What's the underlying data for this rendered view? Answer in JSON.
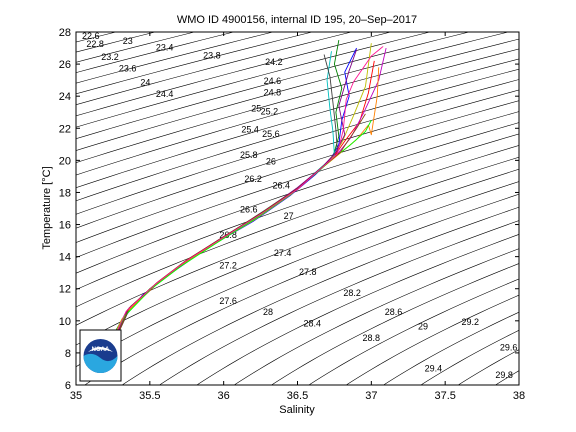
{
  "chart_data": {
    "type": "line",
    "title": "WMO ID 4900156, internal ID 195, 20–Sep–2017",
    "xlabel": "Salinity",
    "ylabel": "Temperature [°C]",
    "xlim": [
      35,
      38
    ],
    "ylim": [
      6,
      28
    ],
    "x_ticks": [
      "35",
      "35.5",
      "36",
      "36.5",
      "37",
      "37.5",
      "38"
    ],
    "y_ticks": [
      "6",
      "8",
      "10",
      "12",
      "14",
      "16",
      "18",
      "20",
      "22",
      "24",
      "26",
      "28"
    ],
    "grid": false,
    "logo_text": "NOAA",
    "density_contours": {
      "levels": [
        21.4,
        21.6,
        21.8,
        22,
        22.2,
        22.4,
        22.6,
        22.8,
        23,
        23.2,
        23.4,
        23.6,
        23.8,
        24,
        24.2,
        24.4,
        24.6,
        24.8,
        25,
        25.2,
        25.4,
        25.6,
        25.8,
        26,
        26.2,
        26.4,
        26.6,
        26.8,
        27,
        27.2,
        27.4,
        27.6,
        27.8,
        28,
        28.2,
        28.4,
        28.6,
        28.8,
        29,
        29.2,
        29.4,
        29.6,
        29.8,
        30
      ],
      "labels": [
        {
          "text": "22.6",
          "s": 35.1,
          "t": 27.7
        },
        {
          "text": "22.8",
          "s": 35.13,
          "t": 27.2
        },
        {
          "text": "23",
          "s": 35.35,
          "t": 27.4
        },
        {
          "text": "23.2",
          "s": 35.23,
          "t": 26.4
        },
        {
          "text": "23.4",
          "s": 35.6,
          "t": 27.0
        },
        {
          "text": "23.6",
          "s": 35.35,
          "t": 25.7
        },
        {
          "text": "23.8",
          "s": 35.92,
          "t": 26.5
        },
        {
          "text": "24",
          "s": 35.47,
          "t": 24.8
        },
        {
          "text": "24.2",
          "s": 36.34,
          "t": 26.1
        },
        {
          "text": "24.4",
          "s": 35.6,
          "t": 24.1
        },
        {
          "text": "24.6",
          "s": 36.33,
          "t": 24.9
        },
        {
          "text": "24.8",
          "s": 36.33,
          "t": 24.2
        },
        {
          "text": "25",
          "s": 36.22,
          "t": 23.2
        },
        {
          "text": "25.2",
          "s": 36.31,
          "t": 23.0
        },
        {
          "text": "25.4",
          "s": 36.18,
          "t": 21.9
        },
        {
          "text": "25.6",
          "s": 36.32,
          "t": 21.6
        },
        {
          "text": "25.8",
          "s": 36.17,
          "t": 20.3
        },
        {
          "text": "26",
          "s": 36.32,
          "t": 19.9
        },
        {
          "text": "26.2",
          "s": 36.2,
          "t": 18.8
        },
        {
          "text": "26.4",
          "s": 36.39,
          "t": 18.4
        },
        {
          "text": "26.6",
          "s": 36.17,
          "t": 16.9
        },
        {
          "text": "27",
          "s": 36.44,
          "t": 16.5
        },
        {
          "text": "26.8",
          "s": 36.03,
          "t": 15.3
        },
        {
          "text": "27.4",
          "s": 36.4,
          "t": 14.2
        },
        {
          "text": "27.2",
          "s": 36.03,
          "t": 13.4
        },
        {
          "text": "27.8",
          "s": 36.57,
          "t": 13.0
        },
        {
          "text": "28.2",
          "s": 36.87,
          "t": 11.7
        },
        {
          "text": "27.6",
          "s": 36.03,
          "t": 11.2
        },
        {
          "text": "28",
          "s": 36.3,
          "t": 10.5
        },
        {
          "text": "28.6",
          "s": 37.15,
          "t": 10.5
        },
        {
          "text": "28.4",
          "s": 36.6,
          "t": 9.8
        },
        {
          "text": "29.2",
          "s": 37.67,
          "t": 9.9
        },
        {
          "text": "29",
          "s": 37.35,
          "t": 9.6
        },
        {
          "text": "28.8",
          "s": 37.0,
          "t": 8.9
        },
        {
          "text": "29.6",
          "s": 37.93,
          "t": 8.3
        },
        {
          "text": "29.4",
          "s": 37.42,
          "t": 7.0
        },
        {
          "text": "29.8",
          "s": 37.9,
          "t": 6.6
        }
      ]
    },
    "series": [
      {
        "color": "#0000ff",
        "points": [
          [
            35.25,
            8.8
          ],
          [
            35.3,
            9.9
          ],
          [
            35.45,
            11.6
          ],
          [
            35.65,
            13.0
          ],
          [
            35.9,
            14.6
          ],
          [
            36.2,
            16.2
          ],
          [
            36.45,
            17.8
          ],
          [
            36.62,
            19.1
          ],
          [
            36.72,
            20.0
          ],
          [
            36.78,
            21.0
          ],
          [
            36.8,
            22.5
          ],
          [
            36.85,
            24.0
          ],
          [
            36.82,
            25.5
          ],
          [
            36.9,
            27.0
          ]
        ]
      },
      {
        "color": "#008000",
        "points": [
          [
            35.22,
            8.6
          ],
          [
            35.32,
            10.2
          ],
          [
            35.5,
            12.0
          ],
          [
            35.7,
            13.4
          ],
          [
            35.95,
            14.9
          ],
          [
            36.22,
            16.4
          ],
          [
            36.47,
            18.0
          ],
          [
            36.63,
            19.3
          ],
          [
            36.74,
            20.2
          ],
          [
            36.78,
            21.5
          ],
          [
            36.76,
            23.0
          ],
          [
            36.8,
            24.5
          ],
          [
            36.75,
            26.0
          ],
          [
            36.78,
            27.5
          ]
        ]
      },
      {
        "color": "#ff0000",
        "points": [
          [
            35.27,
            9.0
          ],
          [
            35.35,
            10.6
          ],
          [
            35.55,
            12.3
          ],
          [
            35.75,
            13.7
          ],
          [
            36.0,
            15.2
          ],
          [
            36.25,
            16.6
          ],
          [
            36.5,
            18.2
          ],
          [
            36.66,
            19.5
          ],
          [
            36.76,
            20.4
          ],
          [
            36.82,
            21.2
          ],
          [
            36.92,
            22.4
          ],
          [
            36.98,
            24.2
          ],
          [
            37.02,
            26.2
          ]
        ]
      },
      {
        "color": "#00bfbf",
        "points": [
          [
            35.24,
            8.7
          ],
          [
            35.33,
            10.4
          ],
          [
            35.52,
            12.1
          ],
          [
            35.72,
            13.5
          ],
          [
            35.97,
            15.0
          ],
          [
            36.23,
            16.5
          ],
          [
            36.48,
            18.1
          ],
          [
            36.64,
            19.4
          ],
          [
            36.75,
            20.3
          ],
          [
            36.74,
            21.8
          ],
          [
            36.72,
            23.2
          ],
          [
            36.7,
            25.0
          ],
          [
            36.73,
            26.8
          ]
        ]
      },
      {
        "color": "#bf00bf",
        "points": [
          [
            35.26,
            8.9
          ],
          [
            35.36,
            10.8
          ],
          [
            35.56,
            12.4
          ],
          [
            35.76,
            13.8
          ],
          [
            36.02,
            15.3
          ],
          [
            36.27,
            16.8
          ],
          [
            36.5,
            18.3
          ],
          [
            36.67,
            19.6
          ],
          [
            36.78,
            20.5
          ],
          [
            36.86,
            21.4
          ],
          [
            36.95,
            23.0
          ],
          [
            37.05,
            25.0
          ],
          [
            37.1,
            27.0
          ]
        ]
      },
      {
        "color": "#bfbf00",
        "points": [
          [
            35.23,
            8.5
          ],
          [
            35.31,
            10.1
          ],
          [
            35.49,
            11.9
          ],
          [
            35.69,
            13.3
          ],
          [
            35.94,
            14.8
          ],
          [
            36.21,
            16.3
          ],
          [
            36.46,
            17.9
          ],
          [
            36.62,
            19.2
          ],
          [
            36.73,
            20.1
          ],
          [
            36.8,
            21.1
          ],
          [
            36.88,
            22.8
          ],
          [
            36.96,
            24.6
          ],
          [
            37.0,
            27.3
          ]
        ]
      },
      {
        "color": "#404040",
        "points": [
          [
            35.28,
            9.1
          ],
          [
            35.37,
            10.9
          ],
          [
            35.57,
            12.5
          ],
          [
            35.77,
            13.9
          ],
          [
            36.03,
            15.4
          ],
          [
            36.28,
            16.9
          ],
          [
            36.52,
            18.4
          ],
          [
            36.68,
            19.7
          ],
          [
            36.77,
            20.6
          ],
          [
            36.76,
            21.9
          ],
          [
            36.74,
            23.6
          ],
          [
            36.72,
            25.2
          ],
          [
            36.68,
            26.6
          ]
        ]
      },
      {
        "color": "#ff8000",
        "points": [
          [
            35.25,
            8.6
          ],
          [
            35.34,
            10.5
          ],
          [
            35.53,
            12.2
          ],
          [
            35.73,
            13.6
          ],
          [
            35.98,
            15.1
          ],
          [
            36.24,
            16.6
          ],
          [
            36.49,
            18.2
          ],
          [
            36.65,
            19.4
          ],
          [
            36.77,
            20.3
          ],
          [
            36.9,
            21.3
          ],
          [
            36.98,
            22.2
          ],
          [
            37.0,
            21.6
          ],
          [
            37.04,
            24.0
          ],
          [
            37.05,
            25.8
          ]
        ]
      },
      {
        "color": "#800080",
        "points": [
          [
            35.26,
            8.8
          ],
          [
            35.35,
            10.7
          ],
          [
            35.54,
            12.3
          ],
          [
            35.74,
            13.7
          ],
          [
            35.99,
            15.2
          ],
          [
            36.26,
            16.7
          ],
          [
            36.5,
            18.3
          ],
          [
            36.66,
            19.5
          ],
          [
            36.76,
            20.5
          ],
          [
            36.82,
            21.6
          ],
          [
            36.78,
            23.4
          ],
          [
            36.85,
            25.6
          ],
          [
            36.9,
            26.9
          ]
        ]
      },
      {
        "color": "#00ff00",
        "points": [
          [
            35.24,
            8.7
          ],
          [
            35.33,
            10.3
          ],
          [
            35.51,
            12.0
          ],
          [
            35.71,
            13.4
          ],
          [
            35.96,
            14.9
          ],
          [
            36.22,
            16.4
          ],
          [
            36.47,
            18.0
          ],
          [
            36.64,
            19.3
          ],
          [
            36.75,
            20.2
          ],
          [
            36.85,
            20.9
          ],
          [
            36.96,
            21.8
          ],
          [
            37.0,
            22.5
          ]
        ]
      },
      {
        "color": "#8b4513",
        "points": [
          [
            35.27,
            8.9
          ],
          [
            35.36,
            10.8
          ],
          [
            35.55,
            12.4
          ],
          [
            35.75,
            13.8
          ],
          [
            36.01,
            15.3
          ],
          [
            36.27,
            16.8
          ],
          [
            36.51,
            18.3
          ],
          [
            36.67,
            19.6
          ],
          [
            36.79,
            20.5
          ],
          [
            36.84,
            21.2
          ],
          [
            36.9,
            22.0
          ],
          [
            36.96,
            22.9
          ]
        ]
      },
      {
        "color": "#ff1493",
        "points": [
          [
            35.25,
            8.8
          ],
          [
            35.34,
            10.6
          ],
          [
            35.54,
            12.3
          ],
          [
            35.74,
            13.7
          ],
          [
            36.0,
            15.2
          ],
          [
            36.26,
            16.7
          ],
          [
            36.5,
            18.2
          ],
          [
            36.66,
            19.5
          ],
          [
            36.77,
            20.4
          ],
          [
            36.81,
            21.9
          ],
          [
            36.83,
            23.8
          ],
          [
            36.88,
            24.9
          ],
          [
            37.0,
            26.5
          ],
          [
            37.08,
            27.1
          ]
        ]
      }
    ]
  }
}
